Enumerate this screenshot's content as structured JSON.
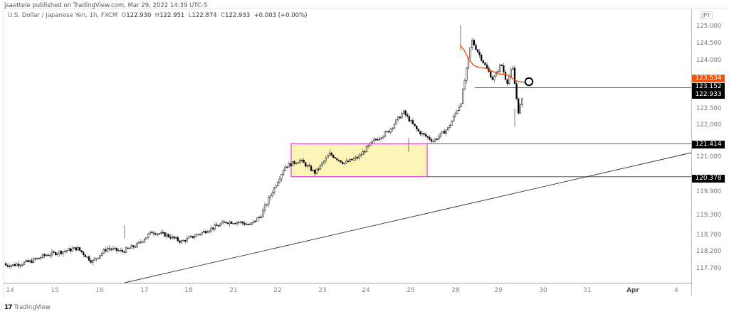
{
  "publisher": "jsaettele published on TradingView.com, Mar 29, 2022 14:39 UTC-5",
  "legend": {
    "symbol": "U.S. Dollar / Japanese Yen, 1h, FXCM",
    "open_label": "O",
    "open": "122.930",
    "high_label": "H",
    "high": "122.951",
    "low_label": "L",
    "low": "122.874",
    "close_label": "C",
    "close": "122.933",
    "change": "+0.003 (+0.00%)"
  },
  "currency": "JPY",
  "footer": {
    "brand": "TradingView",
    "logo_icon": "tradingview-logo-icon"
  },
  "colors": {
    "candle": "#000000",
    "wick": "#555555",
    "moving_average": "#f0550f",
    "zone_fill": "#fff4b8",
    "zone_border": "#e040e0",
    "horizontal_line": "#555555",
    "trendline": "#333333"
  },
  "chart_data": {
    "type": "candlestick",
    "title": "U.S. Dollar / Japanese Yen, 1h, FXCM",
    "xlabel": "",
    "ylabel": "JPY",
    "ylim": [
      117.3,
      125.6
    ],
    "grid": false,
    "x_ticks": [
      "14",
      "15",
      "16",
      "17",
      "18",
      "21",
      "22",
      "23",
      "24",
      "25",
      "28",
      "29",
      "30",
      "31",
      "Apr",
      "4"
    ],
    "y_ticks": [
      "125.000",
      "124.500",
      "124.000",
      "122.500",
      "122.000",
      "121.000",
      "119.900",
      "119.300",
      "118.700",
      "118.200",
      "117.700"
    ],
    "price_tags": [
      {
        "value": "123.534",
        "type": "moving-average",
        "color": "#f0550f"
      },
      {
        "value": "123.152",
        "type": "horizontal-line"
      },
      {
        "value": "122.933",
        "type": "last-price"
      },
      {
        "value": "121.414",
        "type": "horizontal-line"
      },
      {
        "value": "120.378",
        "type": "horizontal-line"
      }
    ],
    "annotations": [
      {
        "type": "rectangle",
        "label": "consolidation-zone",
        "from_date": "Mar 22",
        "to_date": "Mar 25",
        "top": 121.414,
        "bottom": 120.378
      },
      {
        "type": "horizontal-line",
        "value": 121.414
      },
      {
        "type": "horizontal-line",
        "value": 120.378
      },
      {
        "type": "horizontal-line",
        "value": 123.152,
        "from_date": "Mar 28"
      },
      {
        "type": "trendline",
        "from": {
          "date": "Mar 16",
          "value": 117.4
        },
        "to": {
          "date": "Apr 4+",
          "value": 121.1
        }
      },
      {
        "type": "circle-marker",
        "near_value": 123.4,
        "date": "Mar 29"
      },
      {
        "type": "moving-average",
        "last_value": 123.534
      }
    ],
    "close_path": [
      [
        "14",
        117.8
      ],
      [
        "14",
        117.9
      ],
      [
        "14",
        118.1
      ],
      [
        "15",
        118.2
      ],
      [
        "15",
        118.3
      ],
      [
        "15",
        117.9
      ],
      [
        "16",
        118.3
      ],
      [
        "16",
        118.2
      ],
      [
        "16",
        118.4
      ],
      [
        "17",
        118.8
      ],
      [
        "17",
        118.7
      ],
      [
        "17",
        118.5
      ],
      [
        "18",
        118.7
      ],
      [
        "18",
        118.9
      ],
      [
        "18",
        119.1
      ],
      [
        "21",
        119.1
      ],
      [
        "21",
        119.0
      ],
      [
        "21",
        119.3
      ],
      [
        "21",
        119.9
      ],
      [
        "22",
        120.7
      ],
      [
        "22",
        120.9
      ],
      [
        "22",
        120.5
      ],
      [
        "23",
        121.1
      ],
      [
        "23",
        120.8
      ],
      [
        "23",
        121.0
      ],
      [
        "24",
        121.5
      ],
      [
        "24",
        121.8
      ],
      [
        "24",
        122.4
      ],
      [
        "25",
        121.8
      ],
      [
        "25",
        121.5
      ],
      [
        "25",
        121.9
      ],
      [
        "28",
        122.7
      ],
      [
        "28",
        124.6
      ],
      [
        "28",
        124.0
      ],
      [
        "28",
        123.4
      ],
      [
        "29",
        123.9
      ],
      [
        "29",
        123.3
      ],
      [
        "29",
        123.8
      ],
      [
        "29",
        122.4
      ],
      [
        "29",
        122.93
      ]
    ]
  }
}
